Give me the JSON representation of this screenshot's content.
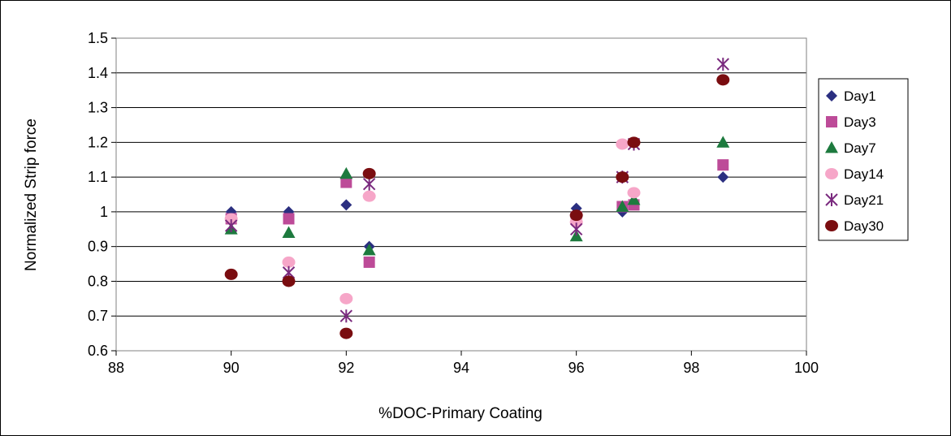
{
  "chart_data": {
    "type": "scatter",
    "title": "",
    "xlabel": "%DOC-Primary Coating",
    "ylabel": "Normalized Strip force",
    "xlim": [
      88,
      100
    ],
    "ylim": [
      0.6,
      1.5
    ],
    "xticks": [
      88,
      90,
      92,
      94,
      96,
      98,
      100
    ],
    "xtick_labels": [
      "88",
      "90",
      "92",
      "94",
      "96",
      "98",
      "100"
    ],
    "yticks": [
      0.6,
      0.7,
      0.8,
      0.9,
      1.0,
      1.1,
      1.2,
      1.3,
      1.4,
      1.5
    ],
    "ytick_labels": [
      "0.6",
      "0.7",
      "0.8",
      "0.9",
      "1",
      "1.1",
      "1.2",
      "1.3",
      "1.4",
      "1.5"
    ],
    "grid": "horizontal",
    "legend_position": "right",
    "series": [
      {
        "name": "Day1",
        "marker": "diamond",
        "color": "#2b2f80",
        "x": [
          90,
          91,
          92,
          92.4,
          96,
          96.8,
          97,
          98.55
        ],
        "y": [
          1.0,
          1.0,
          1.02,
          0.9,
          1.01,
          1.0,
          1.03,
          1.1
        ]
      },
      {
        "name": "Day3",
        "marker": "square",
        "color": "#bd4b98",
        "x": [
          90,
          91,
          92,
          92.4,
          96,
          96.8,
          97,
          98.55
        ],
        "y": [
          0.98,
          0.98,
          1.085,
          0.855,
          0.985,
          1.015,
          1.02,
          1.135
        ]
      },
      {
        "name": "Day7",
        "marker": "triangle",
        "color": "#1d7a3e",
        "x": [
          90,
          91,
          92,
          92.4,
          96,
          96.8,
          97,
          98.55
        ],
        "y": [
          0.95,
          0.94,
          1.11,
          0.89,
          0.93,
          1.015,
          1.035,
          1.2
        ]
      },
      {
        "name": "Day14",
        "marker": "circle",
        "color": "#f6a6c8",
        "x": [
          90,
          91,
          92,
          92.4,
          96,
          96.8,
          97
        ],
        "y": [
          0.98,
          0.855,
          0.75,
          1.045,
          0.97,
          1.195,
          1.055
        ]
      },
      {
        "name": "Day21",
        "marker": "star",
        "color": "#7a2a7e",
        "x": [
          90,
          91,
          92,
          92.4,
          96,
          96.8,
          97,
          98.55
        ],
        "y": [
          0.96,
          0.825,
          0.7,
          1.08,
          0.95,
          1.1,
          1.195,
          1.425
        ]
      },
      {
        "name": "Day30",
        "marker": "circle",
        "color": "#7a0d10",
        "x": [
          90,
          91,
          92,
          92.4,
          96,
          96.8,
          97,
          98.55
        ],
        "y": [
          0.82,
          0.8,
          0.65,
          1.11,
          0.99,
          1.1,
          1.2,
          1.38
        ]
      }
    ]
  }
}
